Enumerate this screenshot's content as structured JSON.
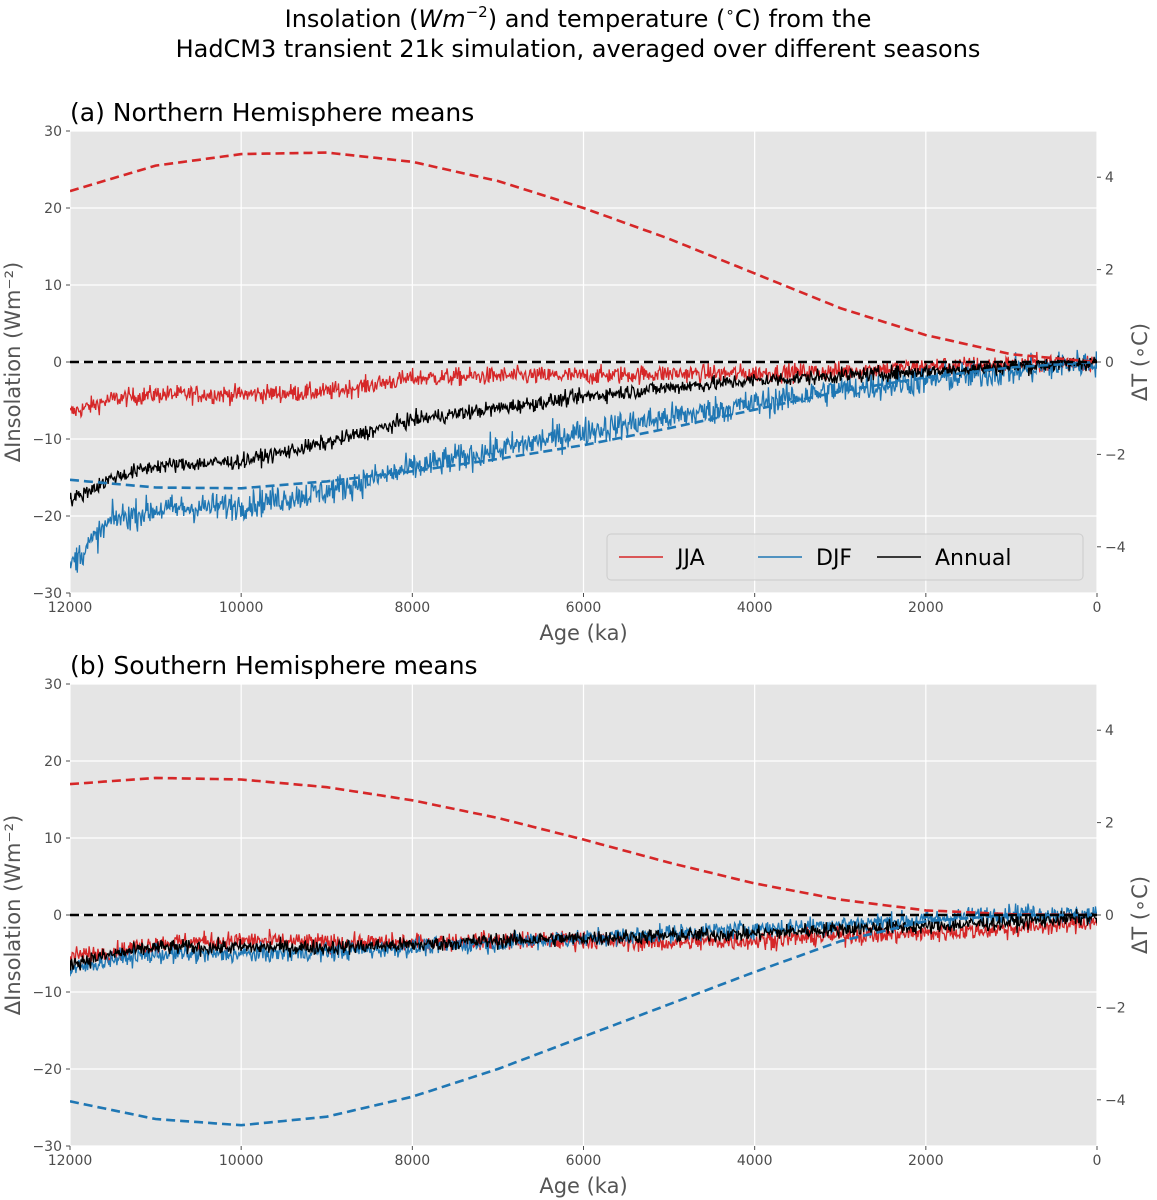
{
  "figure": {
    "title_line1_pre": "Insolation (",
    "title_line1_math": "Wm",
    "title_line1_sup": "−2",
    "title_line1_mid": ") and temperature (",
    "title_line1_deg": "∘",
    "title_line1_post": "C) from the",
    "title_line2": "HadCM3 transient 21k simulation, averaged over different seasons"
  },
  "chart_data": [
    {
      "type": "line",
      "title": "(a) Northern Hemisphere means",
      "xlabel": "Age (ka)",
      "ylabel_left": "ΔInsolation (Wm⁻²)",
      "ylabel_right": "ΔT (∘C)",
      "xlim": [
        12000,
        0
      ],
      "ylim_left": [
        -30,
        30
      ],
      "ylim_right": [
        -5,
        5
      ],
      "x_ticks": [
        "12000",
        "10000",
        "8000",
        "6000",
        "4000",
        "2000",
        "0"
      ],
      "y_ticks_left": [
        "−30",
        "−20",
        "−10",
        "0",
        "10",
        "20",
        "30"
      ],
      "y_ticks_right": [
        "−4",
        "−2",
        "0",
        "2",
        "4"
      ],
      "grid": true,
      "legend": {
        "position": "lower-right",
        "entries": [
          "JJA",
          "DJF",
          "Annual"
        ]
      },
      "insolation_series": [
        {
          "name": "JJA insolation",
          "color": "#d62728",
          "style": "dashed",
          "x": [
            12000,
            11000,
            10000,
            9000,
            8000,
            7000,
            6000,
            5000,
            4000,
            3000,
            2000,
            1000,
            0
          ],
          "y": [
            22.2,
            25.5,
            27.0,
            27.2,
            26.0,
            23.5,
            20.0,
            16.0,
            11.5,
            7.0,
            3.5,
            1.0,
            0.0
          ]
        },
        {
          "name": "DJF insolation",
          "color": "#1f77b4",
          "style": "dashed",
          "x": [
            12000,
            11000,
            10000,
            9000,
            8000,
            7000,
            6000,
            5000,
            4000,
            3000,
            2000,
            1000,
            0
          ],
          "y": [
            -15.3,
            -16.3,
            -16.4,
            -15.5,
            -14.2,
            -12.6,
            -10.8,
            -8.6,
            -6.2,
            -3.8,
            -2.0,
            -0.7,
            0.0
          ]
        },
        {
          "name": "zero line",
          "color": "#000000",
          "style": "dashed",
          "x": [
            12000,
            0
          ],
          "y": [
            0,
            0
          ]
        }
      ],
      "temperature_series": [
        {
          "name": "JJA",
          "color": "#d62728",
          "x": [
            12000,
            11500,
            11000,
            10000,
            9000,
            8000,
            7000,
            6000,
            5000,
            4000,
            3000,
            2000,
            1000,
            0
          ],
          "y": [
            -1.1,
            -0.8,
            -0.7,
            -0.7,
            -0.65,
            -0.35,
            -0.3,
            -0.3,
            -0.25,
            -0.25,
            -0.2,
            -0.1,
            -0.05,
            0.0
          ],
          "noise": 0.18
        },
        {
          "name": "DJF",
          "color": "#1f77b4",
          "x": [
            12000,
            11500,
            11000,
            10000,
            9000,
            8000,
            7000,
            6000,
            5000,
            4000,
            3000,
            2000,
            1000,
            0
          ],
          "y": [
            -4.4,
            -3.4,
            -3.2,
            -3.1,
            -2.8,
            -2.3,
            -1.9,
            -1.5,
            -1.2,
            -0.9,
            -0.6,
            -0.4,
            -0.2,
            0.0
          ],
          "noise": 0.28
        },
        {
          "name": "Annual",
          "color": "#000000",
          "x": [
            12000,
            11500,
            11000,
            10000,
            9000,
            8000,
            7000,
            6000,
            5000,
            4000,
            3000,
            2000,
            1000,
            0
          ],
          "y": [
            -3.0,
            -2.5,
            -2.25,
            -2.15,
            -1.75,
            -1.25,
            -1.0,
            -0.75,
            -0.55,
            -0.4,
            -0.3,
            -0.2,
            -0.1,
            0.0
          ],
          "noise": 0.15
        }
      ]
    },
    {
      "type": "line",
      "title": "(b) Southern Hemisphere means",
      "xlabel": "Age (ka)",
      "ylabel_left": "ΔInsolation (Wm⁻²)",
      "ylabel_right": "ΔT (∘C)",
      "xlim": [
        12000,
        0
      ],
      "ylim_left": [
        -30,
        30
      ],
      "ylim_right": [
        -5,
        5
      ],
      "x_ticks": [
        "12000",
        "10000",
        "8000",
        "6000",
        "4000",
        "2000",
        "0"
      ],
      "y_ticks_left": [
        "−30",
        "−20",
        "−10",
        "0",
        "10",
        "20",
        "30"
      ],
      "y_ticks_right": [
        "−4",
        "−2",
        "0",
        "2",
        "4"
      ],
      "grid": true,
      "insolation_series": [
        {
          "name": "JJA insolation",
          "color": "#d62728",
          "style": "dashed",
          "x": [
            12000,
            11000,
            10000,
            9000,
            8000,
            7000,
            6000,
            5000,
            4000,
            3000,
            2000,
            1000,
            0
          ],
          "y": [
            17.0,
            17.8,
            17.6,
            16.6,
            14.9,
            12.6,
            9.8,
            6.8,
            4.1,
            2.0,
            0.6,
            0.1,
            0.0
          ]
        },
        {
          "name": "DJF insolation",
          "color": "#1f77b4",
          "style": "dashed",
          "x": [
            12000,
            11000,
            10000,
            9000,
            8000,
            7000,
            6000,
            5000,
            4000,
            3000,
            2000,
            1000,
            0
          ],
          "y": [
            -24.2,
            -26.5,
            -27.3,
            -26.2,
            -23.6,
            -20.0,
            -15.8,
            -11.6,
            -7.4,
            -3.4,
            -0.8,
            0.0,
            0.0
          ]
        },
        {
          "name": "zero line",
          "color": "#000000",
          "style": "dashed",
          "x": [
            12000,
            0
          ],
          "y": [
            0,
            0
          ]
        }
      ],
      "temperature_series": [
        {
          "name": "JJA",
          "color": "#d62728",
          "x": [
            12000,
            11500,
            11000,
            10000,
            9000,
            8000,
            7000,
            6000,
            5000,
            4000,
            3000,
            2000,
            1000,
            0
          ],
          "y": [
            -0.9,
            -0.8,
            -0.6,
            -0.55,
            -0.6,
            -0.6,
            -0.55,
            -0.55,
            -0.6,
            -0.55,
            -0.45,
            -0.4,
            -0.3,
            -0.15
          ],
          "noise": 0.18
        },
        {
          "name": "DJF",
          "color": "#1f77b4",
          "x": [
            12000,
            11500,
            11000,
            10000,
            9000,
            8000,
            7000,
            6000,
            5000,
            4000,
            3000,
            2000,
            1000,
            0
          ],
          "y": [
            -1.2,
            -0.95,
            -0.85,
            -0.85,
            -0.8,
            -0.7,
            -0.6,
            -0.5,
            -0.4,
            -0.3,
            -0.2,
            -0.1,
            0.05,
            0.0
          ],
          "noise": 0.18
        },
        {
          "name": "Annual",
          "color": "#000000",
          "x": [
            12000,
            11500,
            11000,
            10000,
            9000,
            8000,
            7000,
            6000,
            5000,
            4000,
            3000,
            2000,
            1000,
            0
          ],
          "y": [
            -1.05,
            -0.85,
            -0.7,
            -0.7,
            -0.7,
            -0.65,
            -0.55,
            -0.5,
            -0.45,
            -0.4,
            -0.3,
            -0.25,
            -0.15,
            -0.05
          ],
          "noise": 0.15
        }
      ]
    }
  ]
}
